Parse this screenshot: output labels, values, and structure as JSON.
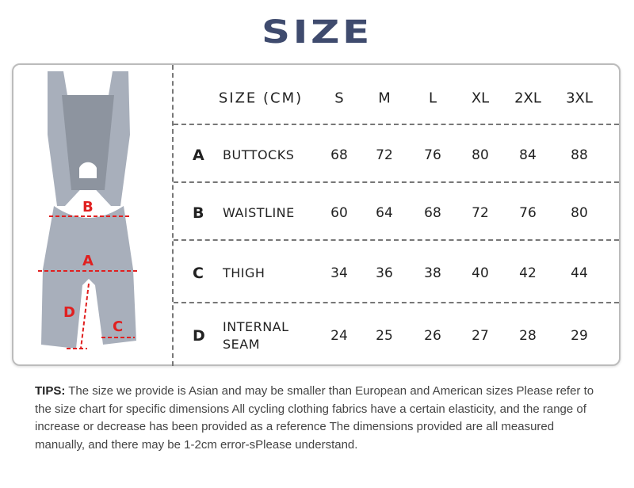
{
  "title": "SIZE",
  "table": {
    "header_label": "SIZE (CM)",
    "sizes": [
      "S",
      "M",
      "L",
      "XL",
      "2XL",
      "3XL"
    ],
    "rows": [
      {
        "letter": "A",
        "name": "BUTTOCKS",
        "values": [
          "68",
          "72",
          "76",
          "80",
          "84",
          "88"
        ]
      },
      {
        "letter": "B",
        "name": "WAISTLINE",
        "values": [
          "60",
          "64",
          "68",
          "72",
          "76",
          "80"
        ]
      },
      {
        "letter": "C",
        "name": "THIGH",
        "values": [
          "34",
          "36",
          "38",
          "40",
          "42",
          "44"
        ]
      },
      {
        "letter": "D",
        "name": "INTERNAL SEAM",
        "values": [
          "24",
          "25",
          "26",
          "27",
          "28",
          "29"
        ]
      }
    ]
  },
  "figure": {
    "labels": [
      "A",
      "B",
      "C",
      "D"
    ],
    "marker_color": "#e02020",
    "garment_color": "#a8afbb"
  },
  "tips": {
    "label": "TIPS:",
    "text": "The size we provide is Asian and may be smaller than European and American sizes Please refer to the size chart for specific dimensions All cycling clothing fabrics have a certain elasticity, and the range of increase or decrease has been provided as a reference The dimensions provided are all measured manually, and there may be 1-2cm error-sPlease understand."
  }
}
